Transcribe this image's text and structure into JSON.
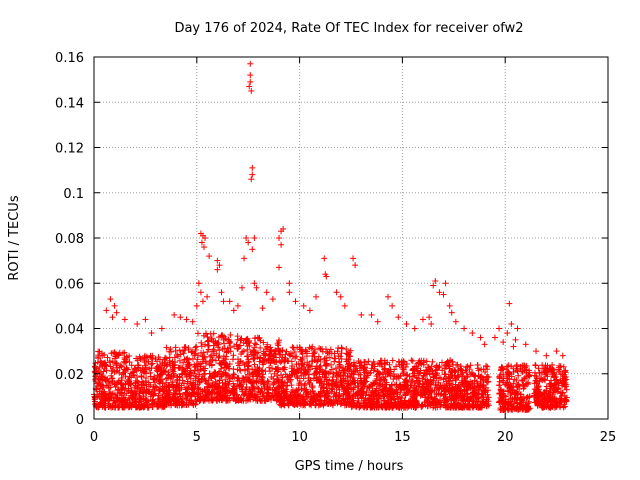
{
  "chart_data": {
    "type": "scatter",
    "title": "Day 176 of 2024, Rate Of TEC Index for receiver ofw2",
    "xlabel": "GPS time / hours",
    "ylabel": "ROTI / TECUs",
    "xlim": [
      0,
      25
    ],
    "ylim": [
      0,
      0.16
    ],
    "x_ticks": [
      0,
      5,
      10,
      15,
      20,
      25
    ],
    "x_tick_labels": [
      "0",
      "5",
      "10",
      "15",
      "20",
      "25"
    ],
    "y_ticks": [
      0,
      0.02,
      0.04,
      0.06,
      0.08,
      0.1,
      0.12,
      0.14,
      0.16
    ],
    "y_tick_labels": [
      "0",
      "0.02",
      "0.04",
      "0.06",
      "0.08",
      "0.1",
      "0.12",
      "0.14",
      "0.16"
    ],
    "grid": true,
    "marker": "+",
    "color": "#ff0000",
    "series": [
      {
        "name": "ROTI",
        "bands": [
          {
            "x0": 0.0,
            "x1": 1.5,
            "ylo": 0.005,
            "yhi": 0.03
          },
          {
            "x0": 1.5,
            "x1": 3.5,
            "ylo": 0.005,
            "yhi": 0.028
          },
          {
            "x0": 3.5,
            "x1": 5.0,
            "ylo": 0.006,
            "yhi": 0.032
          },
          {
            "x0": 5.0,
            "x1": 7.0,
            "ylo": 0.008,
            "yhi": 0.038
          },
          {
            "x0": 7.0,
            "x1": 9.0,
            "ylo": 0.008,
            "yhi": 0.036
          },
          {
            "x0": 9.0,
            "x1": 12.5,
            "ylo": 0.006,
            "yhi": 0.032
          },
          {
            "x0": 12.5,
            "x1": 15.0,
            "ylo": 0.005,
            "yhi": 0.026
          },
          {
            "x0": 15.0,
            "x1": 17.5,
            "ylo": 0.005,
            "yhi": 0.026
          },
          {
            "x0": 17.5,
            "x1": 19.2,
            "ylo": 0.005,
            "yhi": 0.024
          },
          {
            "x0": 19.7,
            "x1": 21.2,
            "ylo": 0.004,
            "yhi": 0.024
          },
          {
            "x0": 21.4,
            "x1": 23.0,
            "ylo": 0.005,
            "yhi": 0.024
          }
        ],
        "outliers": [
          [
            7.6,
            0.157
          ],
          [
            7.6,
            0.152
          ],
          [
            7.6,
            0.149
          ],
          [
            7.55,
            0.147
          ],
          [
            7.65,
            0.145
          ],
          [
            7.7,
            0.111
          ],
          [
            7.7,
            0.108
          ],
          [
            7.65,
            0.106
          ],
          [
            5.2,
            0.082
          ],
          [
            5.3,
            0.081
          ],
          [
            5.4,
            0.08
          ],
          [
            5.25,
            0.078
          ],
          [
            5.35,
            0.076
          ],
          [
            5.6,
            0.072
          ],
          [
            6.0,
            0.07
          ],
          [
            6.1,
            0.068
          ],
          [
            6.0,
            0.066
          ],
          [
            7.4,
            0.08
          ],
          [
            7.5,
            0.078
          ],
          [
            7.8,
            0.08
          ],
          [
            7.7,
            0.075
          ],
          [
            7.3,
            0.071
          ],
          [
            9.1,
            0.083
          ],
          [
            9.2,
            0.084
          ],
          [
            9.0,
            0.08
          ],
          [
            9.1,
            0.077
          ],
          [
            9.0,
            0.067
          ],
          [
            11.2,
            0.071
          ],
          [
            11.3,
            0.063
          ],
          [
            11.25,
            0.064
          ],
          [
            12.6,
            0.071
          ],
          [
            12.7,
            0.068
          ],
          [
            7.2,
            0.058
          ],
          [
            7.8,
            0.06
          ],
          [
            7.9,
            0.058
          ],
          [
            9.5,
            0.06
          ],
          [
            9.5,
            0.056
          ],
          [
            5.1,
            0.06
          ],
          [
            5.2,
            0.056
          ],
          [
            5.3,
            0.052
          ],
          [
            5.0,
            0.05
          ],
          [
            5.5,
            0.054
          ],
          [
            6.2,
            0.056
          ],
          [
            6.3,
            0.052
          ],
          [
            6.6,
            0.052
          ],
          [
            7.0,
            0.05
          ],
          [
            6.8,
            0.048
          ],
          [
            8.4,
            0.056
          ],
          [
            8.7,
            0.053
          ],
          [
            8.2,
            0.049
          ],
          [
            9.8,
            0.052
          ],
          [
            10.2,
            0.05
          ],
          [
            11.8,
            0.056
          ],
          [
            12.0,
            0.054
          ],
          [
            12.2,
            0.05
          ],
          [
            10.8,
            0.054
          ],
          [
            10.5,
            0.048
          ],
          [
            0.6,
            0.048
          ],
          [
            0.8,
            0.053
          ],
          [
            1.0,
            0.05
          ],
          [
            1.1,
            0.047
          ],
          [
            0.9,
            0.045
          ],
          [
            1.5,
            0.044
          ],
          [
            2.1,
            0.042
          ],
          [
            2.5,
            0.044
          ],
          [
            3.3,
            0.04
          ],
          [
            3.9,
            0.046
          ],
          [
            4.2,
            0.045
          ],
          [
            4.5,
            0.044
          ],
          [
            4.8,
            0.043
          ],
          [
            2.8,
            0.038
          ],
          [
            13.0,
            0.046
          ],
          [
            13.5,
            0.046
          ],
          [
            13.8,
            0.043
          ],
          [
            14.3,
            0.054
          ],
          [
            14.5,
            0.05
          ],
          [
            14.8,
            0.045
          ],
          [
            15.2,
            0.042
          ],
          [
            15.6,
            0.04
          ],
          [
            16.0,
            0.044
          ],
          [
            16.3,
            0.045
          ],
          [
            16.4,
            0.042
          ],
          [
            16.6,
            0.061
          ],
          [
            16.5,
            0.059
          ],
          [
            16.8,
            0.056
          ],
          [
            17.1,
            0.06
          ],
          [
            17.0,
            0.055
          ],
          [
            17.3,
            0.05
          ],
          [
            17.4,
            0.047
          ],
          [
            17.6,
            0.043
          ],
          [
            18.0,
            0.04
          ],
          [
            18.4,
            0.038
          ],
          [
            18.8,
            0.036
          ],
          [
            19.0,
            0.033
          ],
          [
            20.2,
            0.051
          ],
          [
            20.3,
            0.042
          ],
          [
            20.1,
            0.038
          ],
          [
            20.5,
            0.035
          ],
          [
            20.4,
            0.032
          ],
          [
            20.6,
            0.04
          ],
          [
            21.0,
            0.033
          ],
          [
            21.5,
            0.03
          ],
          [
            22.0,
            0.028
          ],
          [
            22.5,
            0.03
          ],
          [
            22.8,
            0.028
          ],
          [
            19.5,
            0.036
          ],
          [
            19.7,
            0.04
          ],
          [
            19.9,
            0.034
          ]
        ]
      }
    ]
  }
}
